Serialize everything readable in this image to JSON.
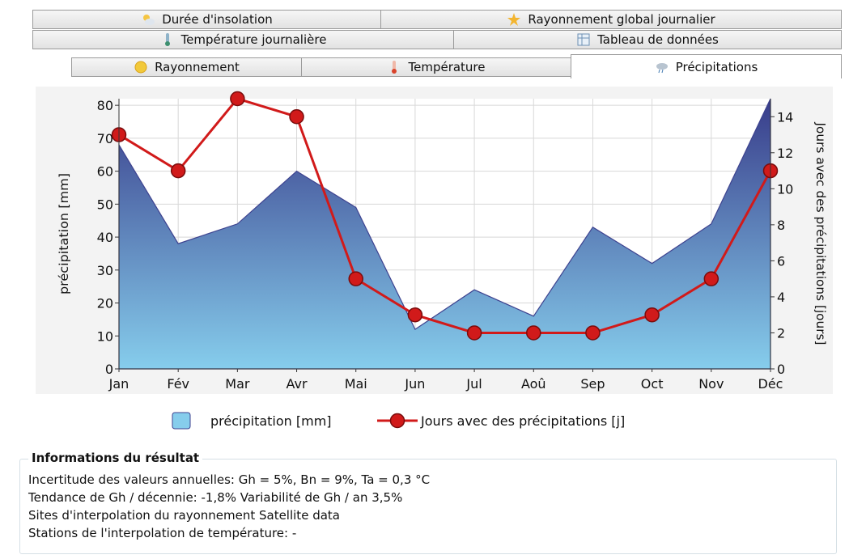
{
  "tabs": {
    "row1": [
      "Durée d'insolation",
      "Rayonnement global journalier"
    ],
    "row2": [
      "Température journalière",
      "Tableau de données"
    ],
    "row3": [
      "Rayonnement",
      "Température",
      "Précipitations"
    ]
  },
  "chart_data": {
    "type": "area-line",
    "categories": [
      "Jan",
      "Fév",
      "Mar",
      "Avr",
      "Mai",
      "Jun",
      "Jul",
      "Aoû",
      "Sep",
      "Oct",
      "Nov",
      "Déc"
    ],
    "series": [
      {
        "name": "précipitation [mm]",
        "color": "#3d428f",
        "values": [
          68,
          38,
          44,
          60,
          49,
          12,
          24,
          16,
          43,
          32,
          44,
          82
        ]
      },
      {
        "name": "Jours avec des précipitations [j]",
        "color": "#d11a1a",
        "axis": "y2",
        "values": [
          13,
          11,
          15,
          14,
          5,
          3,
          2,
          2,
          2,
          3,
          5,
          11
        ]
      }
    ],
    "ylabel": "précipitation [mm]",
    "y2label": "Jours avec des précipitations [jours]",
    "ylim": [
      0,
      82
    ],
    "yticks": [
      0,
      10,
      20,
      30,
      40,
      50,
      60,
      70,
      80
    ],
    "y2lim": [
      0,
      15
    ],
    "y2ticks": [
      0,
      2,
      4,
      6,
      8,
      10,
      12,
      14
    ],
    "grid": true
  },
  "info": {
    "title": "Informations du résultat",
    "lines": [
      "Incertitude des valeurs annuelles: Gh = 5%, Bn = 9%, Ta = 0,3 °C",
      "Tendance de Gh / décennie: -1,8%   Variabilité de Gh / an 3,5%",
      "Sites d'interpolation du rayonnement Satellite data",
      "Stations de l'interpolation de température: -"
    ]
  }
}
